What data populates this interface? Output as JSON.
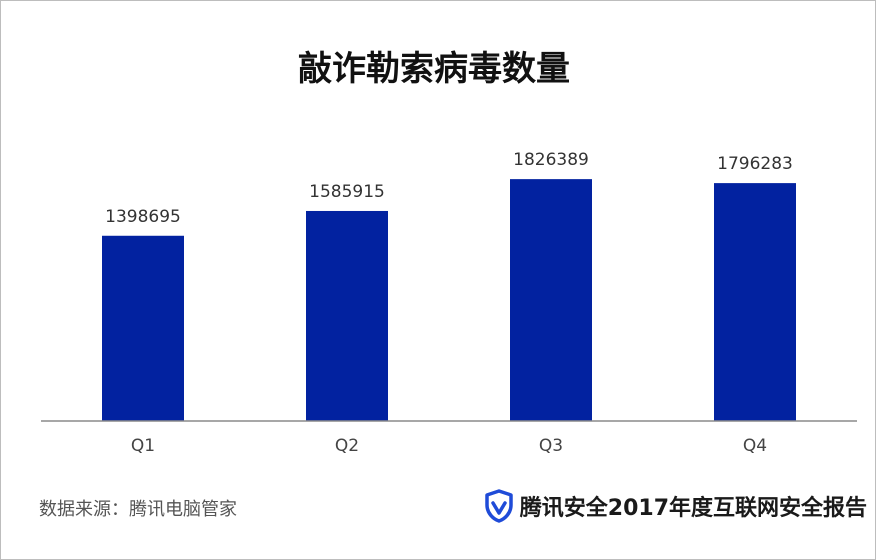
{
  "colors": {
    "bar": "#0222a0",
    "axis": "#8a8a8a",
    "shield": "#1f4bd8"
  },
  "chart_data": {
    "type": "bar",
    "title": "敲诈勒索病毒数量",
    "categories": [
      "Q1",
      "Q2",
      "Q3",
      "Q4"
    ],
    "values": [
      1398695,
      1585915,
      1826389,
      1796283
    ],
    "data_labels": [
      "1398695",
      "1585915",
      "1826389",
      "1796283"
    ],
    "ylim": [
      0,
      1850000
    ],
    "grid": false,
    "legend": "none"
  },
  "footer": {
    "source": "数据来源：腾讯电脑管家",
    "brand": "腾讯安全2017年度互联网安全报告",
    "brand_icon": "shield-icon"
  }
}
